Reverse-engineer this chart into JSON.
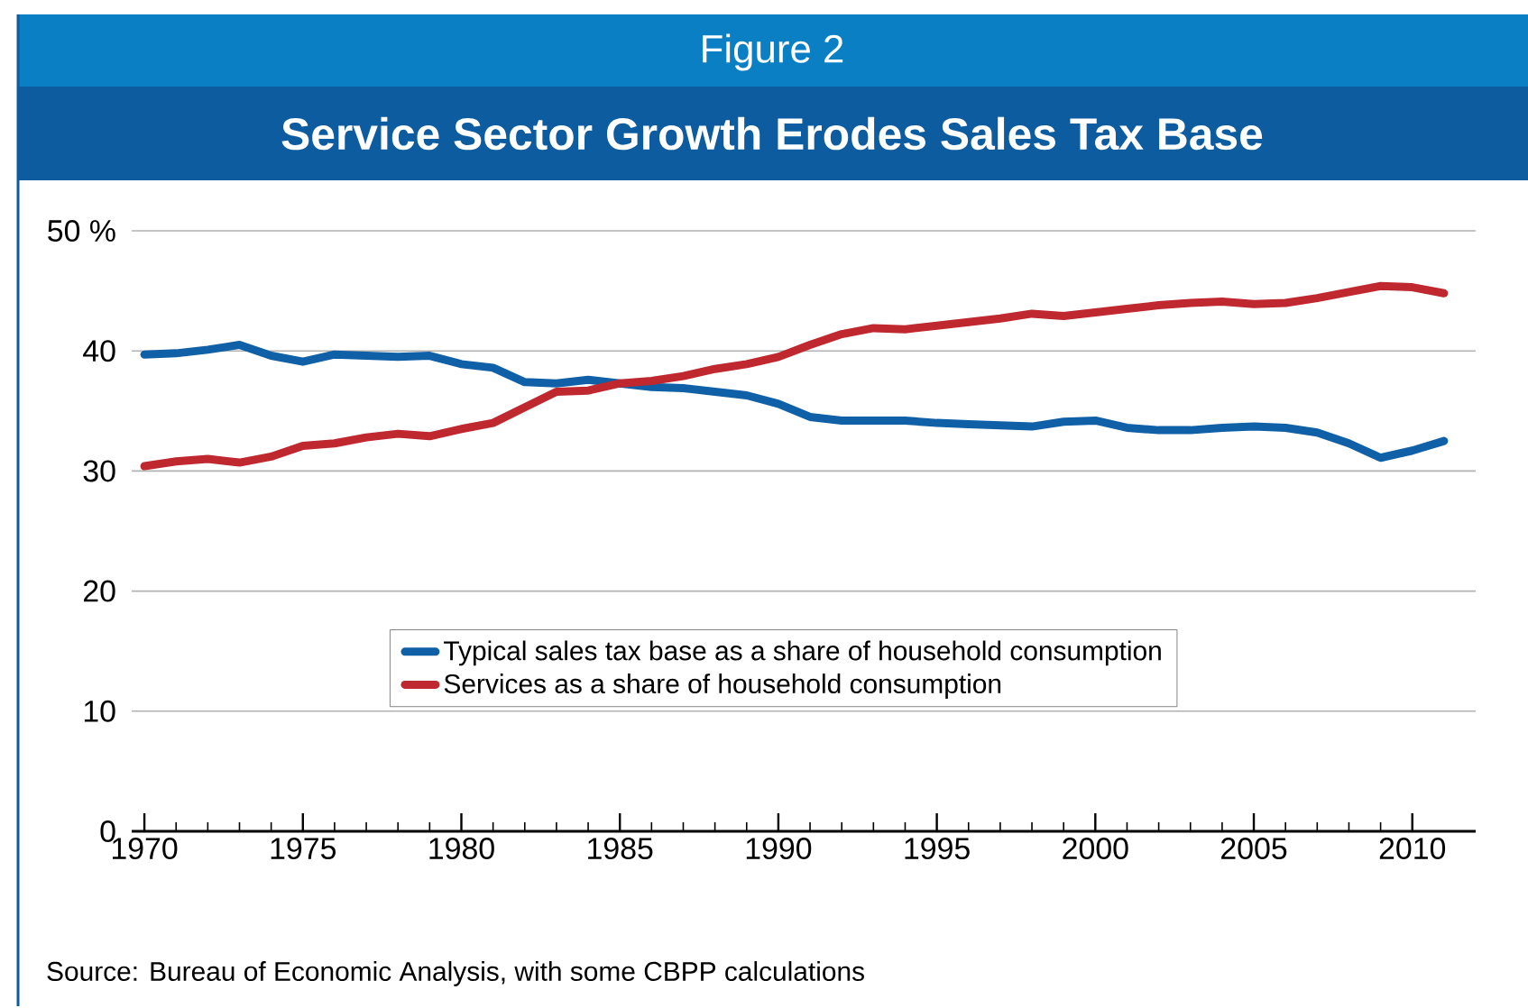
{
  "chart_data": {
    "type": "line",
    "subtitle": "Figure 2",
    "title": "Service Sector Growth Erodes Sales Tax Base",
    "x": [
      1970,
      1971,
      1972,
      1973,
      1974,
      1975,
      1976,
      1977,
      1978,
      1979,
      1980,
      1981,
      1982,
      1983,
      1984,
      1985,
      1986,
      1987,
      1988,
      1989,
      1990,
      1991,
      1992,
      1993,
      1994,
      1995,
      1996,
      1997,
      1998,
      1999,
      2000,
      2001,
      2002,
      2003,
      2004,
      2005,
      2006,
      2007,
      2008,
      2009,
      2010,
      2011
    ],
    "series": [
      {
        "name": "Typical sales tax base as a share of household consumption",
        "color": "#1060a8",
        "values": [
          39.7,
          39.8,
          40.1,
          40.5,
          39.6,
          39.1,
          39.7,
          39.6,
          39.5,
          39.6,
          38.9,
          38.6,
          37.4,
          37.3,
          37.6,
          37.3,
          37.0,
          36.9,
          36.6,
          36.3,
          35.6,
          34.5,
          34.2,
          34.2,
          34.2,
          34.0,
          33.9,
          33.8,
          33.7,
          34.1,
          34.2,
          33.6,
          33.4,
          33.4,
          33.6,
          33.7,
          33.6,
          33.2,
          32.3,
          31.1,
          31.7,
          32.5
        ]
      },
      {
        "name": "Services as a share of household consumption",
        "color": "#c0282f",
        "values": [
          30.4,
          30.8,
          31.0,
          30.7,
          31.2,
          32.1,
          32.3,
          32.8,
          33.1,
          32.9,
          33.5,
          34.0,
          35.3,
          36.6,
          36.7,
          37.3,
          37.5,
          37.9,
          38.5,
          38.9,
          39.5,
          40.5,
          41.4,
          41.9,
          41.8,
          42.1,
          42.4,
          42.7,
          43.1,
          42.9,
          43.2,
          43.5,
          43.8,
          44.0,
          44.1,
          43.9,
          44.0,
          44.4,
          44.9,
          45.4,
          45.3,
          44.8
        ]
      }
    ],
    "xlim": [
      1969.6,
      2012
    ],
    "xticks": [
      1970,
      1975,
      1980,
      1985,
      1990,
      1995,
      2000,
      2005,
      2010
    ],
    "ylim": [
      0,
      50
    ],
    "yticks": [
      0,
      10,
      20,
      30,
      40,
      {
        "value": 50,
        "label": "50 %"
      }
    ],
    "grid": "y",
    "legend": "bottom",
    "line_style": "solid",
    "marker": "none",
    "annotations": [
      "Source: Bureau of Economic Analysis, with some CBPP calculations"
    ]
  }
}
